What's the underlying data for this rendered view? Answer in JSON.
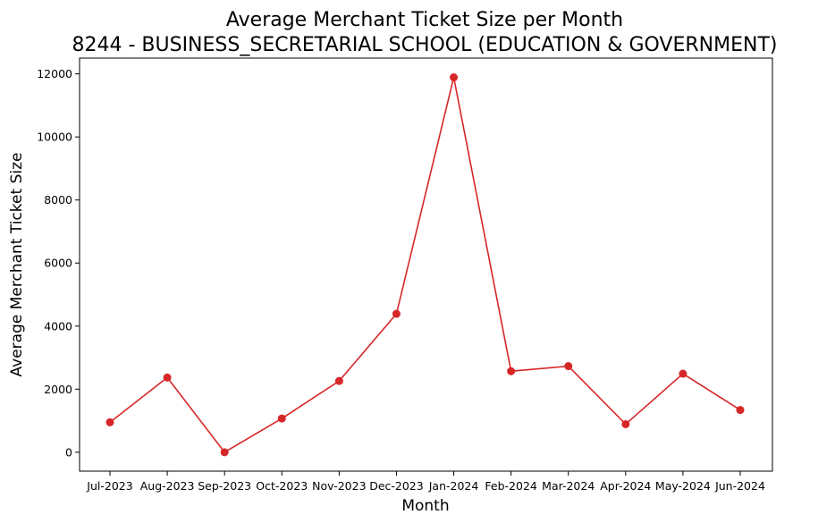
{
  "chart_data": {
    "type": "line",
    "title": "Average Merchant Ticket Size per Month",
    "subtitle": "8244 - BUSINESS_SECRETARIAL SCHOOL (EDUCATION & GOVERNMENT)",
    "xlabel": "Month",
    "ylabel": "Average Merchant Ticket Size",
    "categories": [
      "Jul-2023",
      "Aug-2023",
      "Sep-2023",
      "Oct-2023",
      "Nov-2023",
      "Dec-2023",
      "Jan-2024",
      "Feb-2024",
      "Mar-2024",
      "Apr-2024",
      "May-2024",
      "Jun-2024"
    ],
    "series": [
      {
        "values": [
          950,
          2370,
          0,
          1070,
          2260,
          4390,
          11890,
          2570,
          2730,
          890,
          2490,
          1340
        ]
      }
    ],
    "yticks": [
      0,
      2000,
      4000,
      6000,
      8000,
      10000,
      12000
    ],
    "ylim": [
      -600,
      12500
    ],
    "grid": false,
    "line_color": "#d62728",
    "marker": "circle"
  }
}
